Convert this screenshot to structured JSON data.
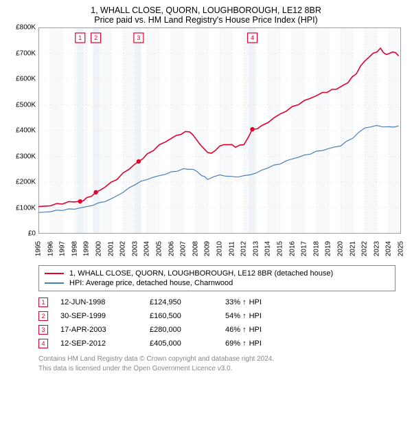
{
  "title": {
    "main": "1, WHALL CLOSE, QUORN, LOUGHBOROUGH, LE12 8BR",
    "sub": "Price paid vs. HM Land Registry's House Price Index (HPI)"
  },
  "chart": {
    "xlim": [
      1995,
      2025
    ],
    "ylim": [
      0,
      800000
    ],
    "yticks": [
      0,
      100000,
      200000,
      300000,
      400000,
      500000,
      600000,
      700000,
      800000
    ],
    "ytick_labels": [
      "£0",
      "£100K",
      "£200K",
      "£300K",
      "£400K",
      "£500K",
      "£600K",
      "£700K",
      "£800K"
    ],
    "xticks": [
      1995,
      1996,
      1997,
      1998,
      1999,
      2000,
      2001,
      2002,
      2003,
      2004,
      2005,
      2006,
      2007,
      2008,
      2009,
      2010,
      2011,
      2012,
      2013,
      2014,
      2015,
      2016,
      2017,
      2018,
      2019,
      2020,
      2021,
      2022,
      2023,
      2024,
      2025
    ],
    "grid_color": "#cccccc",
    "background": "#ffffff",
    "border_color": "#888888",
    "price_color": "#e4002b",
    "hpi_color": "#4a7fb5",
    "band_fill": "#eef3f7",
    "bands": [
      [
        1998.2,
        1998.7
      ],
      [
        1999.5,
        2000.0
      ],
      [
        2003.0,
        2003.5
      ],
      [
        2012.4,
        2012.9
      ]
    ],
    "markers": [
      {
        "n": "1",
        "x": 1998.45,
        "y": 124950
      },
      {
        "n": "2",
        "x": 1999.75,
        "y": 160500
      },
      {
        "n": "3",
        "x": 2003.29,
        "y": 280000
      },
      {
        "n": "4",
        "x": 2012.7,
        "y": 405000
      }
    ],
    "marker_y_label": 760000,
    "price_series": [
      {
        "x": 1995.0,
        "y": 105000
      },
      {
        "x": 1996.0,
        "y": 108000
      },
      {
        "x": 1997.0,
        "y": 115000
      },
      {
        "x": 1998.0,
        "y": 123000
      },
      {
        "x": 1998.45,
        "y": 124950
      },
      {
        "x": 1999.0,
        "y": 140000
      },
      {
        "x": 1999.75,
        "y": 160500
      },
      {
        "x": 2000.5,
        "y": 180000
      },
      {
        "x": 2001.5,
        "y": 210000
      },
      {
        "x": 2002.5,
        "y": 250000
      },
      {
        "x": 2003.29,
        "y": 280000
      },
      {
        "x": 2004.0,
        "y": 310000
      },
      {
        "x": 2005.0,
        "y": 345000
      },
      {
        "x": 2006.0,
        "y": 370000
      },
      {
        "x": 2006.8,
        "y": 385000
      },
      {
        "x": 2007.5,
        "y": 395000
      },
      {
        "x": 2008.0,
        "y": 370000
      },
      {
        "x": 2008.7,
        "y": 330000
      },
      {
        "x": 2009.3,
        "y": 312000
      },
      {
        "x": 2010.0,
        "y": 340000
      },
      {
        "x": 2010.7,
        "y": 345000
      },
      {
        "x": 2011.3,
        "y": 335000
      },
      {
        "x": 2012.0,
        "y": 345000
      },
      {
        "x": 2012.7,
        "y": 405000
      },
      {
        "x": 2013.5,
        "y": 420000
      },
      {
        "x": 2014.5,
        "y": 450000
      },
      {
        "x": 2015.5,
        "y": 475000
      },
      {
        "x": 2016.5,
        "y": 500000
      },
      {
        "x": 2017.5,
        "y": 525000
      },
      {
        "x": 2018.5,
        "y": 548000
      },
      {
        "x": 2019.3,
        "y": 560000
      },
      {
        "x": 2020.0,
        "y": 570000
      },
      {
        "x": 2020.6,
        "y": 585000
      },
      {
        "x": 2021.3,
        "y": 620000
      },
      {
        "x": 2022.0,
        "y": 670000
      },
      {
        "x": 2022.7,
        "y": 700000
      },
      {
        "x": 2023.3,
        "y": 720000
      },
      {
        "x": 2023.8,
        "y": 695000
      },
      {
        "x": 2024.3,
        "y": 705000
      },
      {
        "x": 2024.8,
        "y": 690000
      }
    ],
    "hpi_series": [
      {
        "x": 1995.0,
        "y": 82000
      },
      {
        "x": 1996.0,
        "y": 85000
      },
      {
        "x": 1997.0,
        "y": 90000
      },
      {
        "x": 1998.0,
        "y": 95000
      },
      {
        "x": 1999.0,
        "y": 105000
      },
      {
        "x": 2000.0,
        "y": 120000
      },
      {
        "x": 2001.0,
        "y": 135000
      },
      {
        "x": 2002.0,
        "y": 160000
      },
      {
        "x": 2003.0,
        "y": 190000
      },
      {
        "x": 2004.0,
        "y": 210000
      },
      {
        "x": 2005.0,
        "y": 225000
      },
      {
        "x": 2006.0,
        "y": 240000
      },
      {
        "x": 2007.0,
        "y": 252000
      },
      {
        "x": 2007.8,
        "y": 250000
      },
      {
        "x": 2008.5,
        "y": 225000
      },
      {
        "x": 2009.0,
        "y": 210000
      },
      {
        "x": 2010.0,
        "y": 228000
      },
      {
        "x": 2011.0,
        "y": 222000
      },
      {
        "x": 2012.0,
        "y": 225000
      },
      {
        "x": 2013.0,
        "y": 235000
      },
      {
        "x": 2014.0,
        "y": 255000
      },
      {
        "x": 2015.0,
        "y": 270000
      },
      {
        "x": 2016.0,
        "y": 290000
      },
      {
        "x": 2017.0,
        "y": 305000
      },
      {
        "x": 2018.0,
        "y": 320000
      },
      {
        "x": 2019.0,
        "y": 330000
      },
      {
        "x": 2020.0,
        "y": 340000
      },
      {
        "x": 2021.0,
        "y": 370000
      },
      {
        "x": 2022.0,
        "y": 410000
      },
      {
        "x": 2023.0,
        "y": 420000
      },
      {
        "x": 2024.0,
        "y": 415000
      },
      {
        "x": 2024.8,
        "y": 418000
      }
    ]
  },
  "legend": [
    {
      "color": "#e4002b",
      "label": "1, WHALL CLOSE, QUORN, LOUGHBOROUGH, LE12 8BR (detached house)"
    },
    {
      "color": "#4a7fb5",
      "label": "HPI: Average price, detached house, Charnwood"
    }
  ],
  "transactions": [
    {
      "n": "1",
      "date": "12-JUN-1998",
      "price": "£124,950",
      "pct": "33%",
      "suffix": "↑ HPI"
    },
    {
      "n": "2",
      "date": "30-SEP-1999",
      "price": "£160,500",
      "pct": "54%",
      "suffix": "↑ HPI"
    },
    {
      "n": "3",
      "date": "17-APR-2003",
      "price": "£280,000",
      "pct": "46%",
      "suffix": "↑ HPI"
    },
    {
      "n": "4",
      "date": "12-SEP-2012",
      "price": "£405,000",
      "pct": "69%",
      "suffix": "↑ HPI"
    }
  ],
  "footer": {
    "line1": "Contains HM Land Registry data © Crown copyright and database right 2024.",
    "line2": "This data is licensed under the Open Government Licence v3.0."
  },
  "marker_border": "#e4002b"
}
